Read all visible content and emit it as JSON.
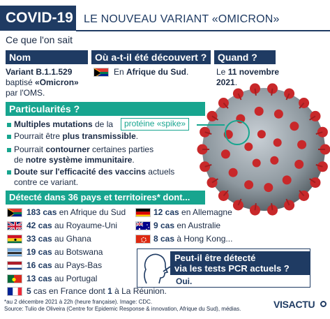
{
  "header": {
    "badge": "COVID-19",
    "title": "LE NOUVEAU VARIANT «OMICRON»"
  },
  "intro": "Ce que l'on sait",
  "nom": {
    "heading": "Nom",
    "line1": "Variant B.1.1.529",
    "line2_prefix": "baptisé ",
    "line2_bold": "«Omicron»",
    "line3": "par l'OMS."
  },
  "origin": {
    "heading": "Où a-t-il été découvert ?",
    "prefix": "En ",
    "country": "Afrique du Sud",
    "suffix": "."
  },
  "when": {
    "heading": "Quand ?",
    "prefix": "Le ",
    "date_bold": "11 novembre",
    "year": "2021",
    "suffix": "."
  },
  "features": {
    "heading": "Particularités ?",
    "spike_label": "protéine «spike»",
    "items": [
      {
        "bold": "Multiples mutations",
        "text": " de la"
      },
      {
        "pre": "Pourrait être ",
        "bold": "plus transmissible",
        "post": "."
      },
      {
        "pre": "Pourrait ",
        "bold": "contourner",
        "post": " certaines parties",
        "line2_pre": "de ",
        "line2_bold": "notre système immunitaire",
        "line2_post": "."
      },
      {
        "bold": "Doute sur l'efficacité des vaccins",
        "post": " actuels",
        "line2_post": "contre ce variant."
      }
    ]
  },
  "detected": {
    "heading": "Détecté dans 36 pays et territoires* dont...",
    "left": [
      {
        "count": "183 cas",
        "place": " en Afrique du Sud",
        "flag": "south-africa-flag"
      },
      {
        "count": "42 cas",
        "place": " au Royaume-Uni",
        "flag": "uk-flag"
      },
      {
        "count": "33 cas",
        "place": " au Ghana",
        "flag": "ghana-flag"
      },
      {
        "count": "19 cas",
        "place": " au Botswana",
        "flag": "botswana-flag"
      },
      {
        "count": "16 cas",
        "place": " au Pays-Bas",
        "flag": "netherlands-flag"
      },
      {
        "count": "13 cas",
        "place": " au Portugal",
        "flag": "portugal-flag"
      },
      {
        "count": "5",
        "place_a": " cas en France dont ",
        "count_b": "1",
        "place_b": " à La Réunion.",
        "flag": "france-flag"
      }
    ],
    "right": [
      {
        "count": "12 cas",
        "place": " en Allemagne",
        "flag": "germany-flag"
      },
      {
        "count": "9 cas",
        "place": " en Australie",
        "flag": "australia-flag"
      },
      {
        "count": "8 cas",
        "place": " à Hong Kong...",
        "flag": "hong-kong-flag"
      }
    ]
  },
  "pcr": {
    "line1": "Peut-il être détecté",
    "line2": "via les tests PCR actuels ?",
    "answer": "Oui."
  },
  "footer": {
    "note": "*au 2 décembre 2021 à 22h (heure française). Image: CDC.",
    "source": "Source: Tulio de Oliveira (Centre for Epidemic Response & innovation, Afrique du Sud), médias.",
    "brand": "VISACTU"
  },
  "colors": {
    "navy": "#1f3b63",
    "teal": "#17a58f",
    "virus_red": "#c8282a",
    "virus_grey": "#9aa4ad"
  }
}
